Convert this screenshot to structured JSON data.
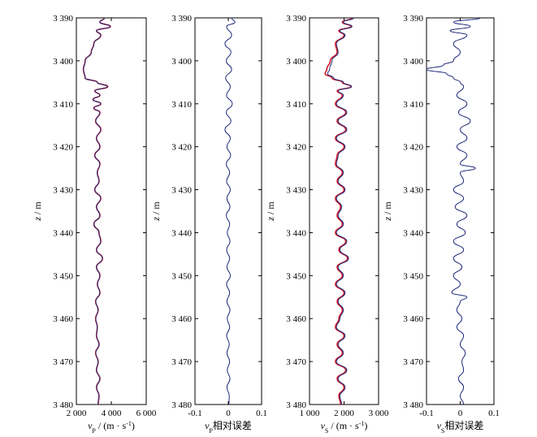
{
  "chart_data": [
    {
      "type": "line",
      "panel": "vp",
      "xlabel": "v_P / (m · s⁻¹)",
      "xlabel_main": "v",
      "xlabel_sub": "P",
      "xlabel_rest": " / (m · s",
      "xlabel_sup": "-1",
      "xlabel_end": ")",
      "ylabel": "z / m",
      "xlim": [
        2000,
        6000
      ],
      "ylim": [
        3480,
        3390
      ],
      "xticks": [
        "2 000",
        "4 000",
        "6 000"
      ],
      "xtick_values": [
        2000,
        4000,
        6000
      ],
      "yticks": [
        "3 390",
        "3 400",
        "3 410",
        "3 420",
        "3 430",
        "3 440",
        "3 450",
        "3 460",
        "3 470",
        "3 480"
      ],
      "ytick_values": [
        3390,
        3400,
        3410,
        3420,
        3430,
        3440,
        3450,
        3460,
        3470,
        3480
      ],
      "series": [
        {
          "color": "#d11a2a",
          "z": [
            3390,
            3391,
            3392,
            3393,
            3394,
            3396,
            3398,
            3400,
            3402,
            3404,
            3405,
            3406,
            3407,
            3408,
            3409,
            3410,
            3411,
            3412,
            3414,
            3416,
            3418,
            3420,
            3422,
            3424,
            3426,
            3428,
            3430,
            3432,
            3434,
            3436,
            3438,
            3440,
            3442,
            3444,
            3446,
            3448,
            3450,
            3452,
            3454,
            3456,
            3458,
            3460,
            3462,
            3464,
            3466,
            3468,
            3470,
            3472,
            3474,
            3476,
            3478,
            3480
          ],
          "v": [
            3600,
            3350,
            3950,
            3150,
            3400,
            3000,
            2850,
            2500,
            2400,
            2500,
            3200,
            3800,
            3050,
            3350,
            2950,
            3400,
            3000,
            3350,
            3100,
            3400,
            3150,
            3350,
            3050,
            3350,
            3200,
            3300,
            3050,
            3400,
            3150,
            3350,
            3000,
            3300,
            3400,
            3150,
            3500,
            3150,
            3350,
            3200,
            3350,
            3100,
            3250,
            3100,
            3200,
            3150,
            3300,
            3100,
            3250,
            3150,
            3350,
            3150,
            3300,
            3250
          ]
        },
        {
          "color": "#1f2a7a",
          "z": [
            3390,
            3391,
            3392,
            3393,
            3394,
            3396,
            3398,
            3400,
            3402,
            3404,
            3405,
            3406,
            3407,
            3408,
            3409,
            3410,
            3411,
            3412,
            3414,
            3416,
            3418,
            3420,
            3422,
            3424,
            3426,
            3428,
            3430,
            3432,
            3434,
            3436,
            3438,
            3440,
            3442,
            3444,
            3446,
            3448,
            3450,
            3452,
            3454,
            3456,
            3458,
            3460,
            3462,
            3464,
            3466,
            3468,
            3470,
            3472,
            3474,
            3476,
            3478,
            3480
          ],
          "v": [
            3620,
            3340,
            3930,
            3160,
            3390,
            3010,
            2860,
            2510,
            2410,
            2510,
            3190,
            3780,
            3060,
            3340,
            2960,
            3390,
            3010,
            3340,
            3110,
            3390,
            3160,
            3340,
            3060,
            3340,
            3190,
            3290,
            3060,
            3390,
            3160,
            3340,
            3010,
            3290,
            3390,
            3160,
            3490,
            3160,
            3340,
            3210,
            3340,
            3110,
            3240,
            3110,
            3190,
            3160,
            3290,
            3110,
            3240,
            3160,
            3340,
            3160,
            3290,
            3240
          ]
        }
      ]
    },
    {
      "type": "line",
      "panel": "vp-relative-error",
      "xlabel": "v_P相对误差",
      "xlabel_main": "v",
      "xlabel_sub": "P",
      "xlabel_rest": "相对误差",
      "ylabel": "z / m",
      "xlim": [
        -0.1,
        0.1
      ],
      "ylim": [
        3480,
        3390
      ],
      "xticks": [
        "-0.1",
        "0",
        "0.1"
      ],
      "xtick_values": [
        -0.1,
        0,
        0.1
      ],
      "yticks": [
        "3 390",
        "3 400",
        "3 410",
        "3 420",
        "3 430",
        "3 440",
        "3 450",
        "3 460",
        "3 470",
        "3 480"
      ],
      "ytick_values": [
        3390,
        3400,
        3410,
        3420,
        3430,
        3440,
        3450,
        3460,
        3470,
        3480
      ],
      "series": [
        {
          "color": "#1f2a7a",
          "z": [
            3390,
            3391,
            3392,
            3394,
            3396,
            3398,
            3400,
            3402,
            3404,
            3406,
            3408,
            3410,
            3412,
            3414,
            3416,
            3418,
            3420,
            3422,
            3424,
            3426,
            3428,
            3430,
            3432,
            3434,
            3436,
            3438,
            3440,
            3442,
            3444,
            3446,
            3448,
            3450,
            3452,
            3454,
            3456,
            3458,
            3460,
            3462,
            3464,
            3466,
            3468,
            3470,
            3472,
            3474,
            3476,
            3478,
            3480
          ],
          "v": [
            0.01,
            0.02,
            -0.005,
            0.01,
            -0.01,
            0.008,
            -0.006,
            0.01,
            -0.008,
            0.006,
            -0.005,
            0.012,
            -0.006,
            0.008,
            -0.01,
            0.006,
            -0.004,
            0.007,
            -0.006,
            0.004,
            -0.005,
            0.006,
            -0.004,
            0.005,
            -0.006,
            0.004,
            -0.003,
            0.005,
            -0.005,
            0.004,
            -0.004,
            0.006,
            -0.005,
            0.004,
            -0.004,
            0.005,
            -0.003,
            0.004,
            -0.005,
            0.003,
            -0.004,
            0.004,
            -0.003,
            0.005,
            -0.004,
            0.003,
            0.002
          ]
        }
      ]
    },
    {
      "type": "line",
      "panel": "vs",
      "xlabel": "v_S / (m · s⁻¹)",
      "xlabel_main": "v",
      "xlabel_sub": "S",
      "xlabel_rest": " / (m · s",
      "xlabel_sup": "-1",
      "xlabel_end": ")",
      "ylabel": "z / m",
      "xlim": [
        1000,
        3000
      ],
      "ylim": [
        3480,
        3390
      ],
      "xticks": [
        "1 000",
        "2 000",
        "3 000"
      ],
      "xtick_values": [
        1000,
        2000,
        3000
      ],
      "yticks": [
        "3 390",
        "3 400",
        "3 410",
        "3 420",
        "3 430",
        "3 440",
        "3 450",
        "3 460",
        "3 470",
        "3 480"
      ],
      "ytick_values": [
        3390,
        3400,
        3410,
        3420,
        3430,
        3440,
        3450,
        3460,
        3470,
        3480
      ],
      "series": [
        {
          "color": "#d11a2a",
          "z": [
            3390,
            3391,
            3392,
            3393,
            3394,
            3396,
            3398,
            3400,
            3402,
            3403,
            3404,
            3405,
            3406,
            3407,
            3408,
            3410,
            3412,
            3414,
            3416,
            3418,
            3420,
            3422,
            3424,
            3426,
            3428,
            3430,
            3432,
            3434,
            3436,
            3438,
            3440,
            3442,
            3444,
            3446,
            3448,
            3450,
            3452,
            3454,
            3456,
            3458,
            3460,
            3462,
            3464,
            3466,
            3468,
            3470,
            3472,
            3474,
            3476,
            3478,
            3480
          ],
          "v": [
            2250,
            1950,
            2200,
            1850,
            2000,
            1750,
            1800,
            1600,
            1500,
            1450,
            1650,
            1950,
            2200,
            1800,
            1950,
            1750,
            2050,
            1800,
            2050,
            1750,
            2000,
            1800,
            1750,
            1950,
            1800,
            2000,
            1750,
            1900,
            1800,
            1950,
            1750,
            2050,
            1850,
            2100,
            1800,
            1950,
            1750,
            2000,
            1800,
            1950,
            1850,
            1750,
            2000,
            1800,
            1950,
            1750,
            2050,
            1800,
            2000,
            1850,
            1900
          ]
        },
        {
          "color": "#1f2a7a",
          "z": [
            3390,
            3391,
            3392,
            3393,
            3394,
            3396,
            3398,
            3400,
            3402,
            3403,
            3404,
            3405,
            3406,
            3407,
            3408,
            3410,
            3412,
            3414,
            3416,
            3418,
            3420,
            3422,
            3424,
            3426,
            3428,
            3430,
            3432,
            3434,
            3436,
            3438,
            3440,
            3442,
            3444,
            3446,
            3448,
            3450,
            3452,
            3454,
            3456,
            3458,
            3460,
            3462,
            3464,
            3466,
            3468,
            3470,
            3472,
            3474,
            3476,
            3478,
            3480
          ],
          "v": [
            2280,
            1980,
            2230,
            1880,
            2030,
            1780,
            1830,
            1650,
            1580,
            1520,
            1700,
            1980,
            2220,
            1830,
            1980,
            1780,
            2080,
            1830,
            2080,
            1780,
            2030,
            1830,
            1780,
            1980,
            1830,
            2030,
            1780,
            1930,
            1830,
            1980,
            1780,
            2080,
            1880,
            2130,
            1830,
            1980,
            1780,
            2030,
            1830,
            1980,
            1880,
            1780,
            2030,
            1830,
            1980,
            1780,
            2080,
            1830,
            2030,
            1880,
            1930
          ]
        }
      ]
    },
    {
      "type": "line",
      "panel": "vs-relative-error",
      "xlabel": "v_S相对误差",
      "xlabel_main": "v",
      "xlabel_sub": "S",
      "xlabel_rest": "相对误差",
      "ylabel": "z / m",
      "xlim": [
        -0.1,
        0.1
      ],
      "ylim": [
        3480,
        3390
      ],
      "xticks": [
        "-0.1",
        "0",
        "0.1"
      ],
      "xtick_values": [
        -0.1,
        0,
        0.1
      ],
      "yticks": [
        "3 390",
        "3 400",
        "3 410",
        "3 420",
        "3 430",
        "3 440",
        "3 450",
        "3 460",
        "3 470",
        "3 480"
      ],
      "ytick_values": [
        3390,
        3400,
        3410,
        3420,
        3430,
        3440,
        3450,
        3460,
        3470,
        3480
      ],
      "series": [
        {
          "color": "#1f2a7a",
          "z": [
            3390,
            3391,
            3392,
            3393,
            3394,
            3396,
            3398,
            3400,
            3401,
            3402,
            3403,
            3404,
            3405,
            3406,
            3408,
            3410,
            3412,
            3414,
            3416,
            3418,
            3420,
            3422,
            3424,
            3425,
            3426,
            3428,
            3430,
            3432,
            3434,
            3436,
            3438,
            3440,
            3442,
            3444,
            3446,
            3448,
            3450,
            3452,
            3454,
            3455,
            3456,
            3458,
            3460,
            3462,
            3464,
            3466,
            3468,
            3470,
            3472,
            3474,
            3476,
            3478,
            3480
          ],
          "v": [
            0.06,
            -0.02,
            0.03,
            -0.03,
            0.02,
            -0.02,
            0.0,
            -0.02,
            -0.05,
            -0.1,
            -0.04,
            -0.02,
            0.0,
            0.01,
            -0.01,
            0.02,
            -0.005,
            0.03,
            0.0,
            0.02,
            -0.01,
            0.02,
            0.0,
            0.045,
            0.0,
            0.01,
            -0.02,
            0.01,
            -0.015,
            0.02,
            -0.01,
            0.015,
            -0.02,
            0.01,
            -0.02,
            0.005,
            -0.02,
            0.0,
            -0.025,
            0.02,
            0.0,
            -0.01,
            0.005,
            -0.01,
            0.01,
            0.0,
            0.015,
            0.005,
            0.01,
            -0.005,
            0.01,
            0.0,
            0.01
          ]
        }
      ]
    }
  ]
}
